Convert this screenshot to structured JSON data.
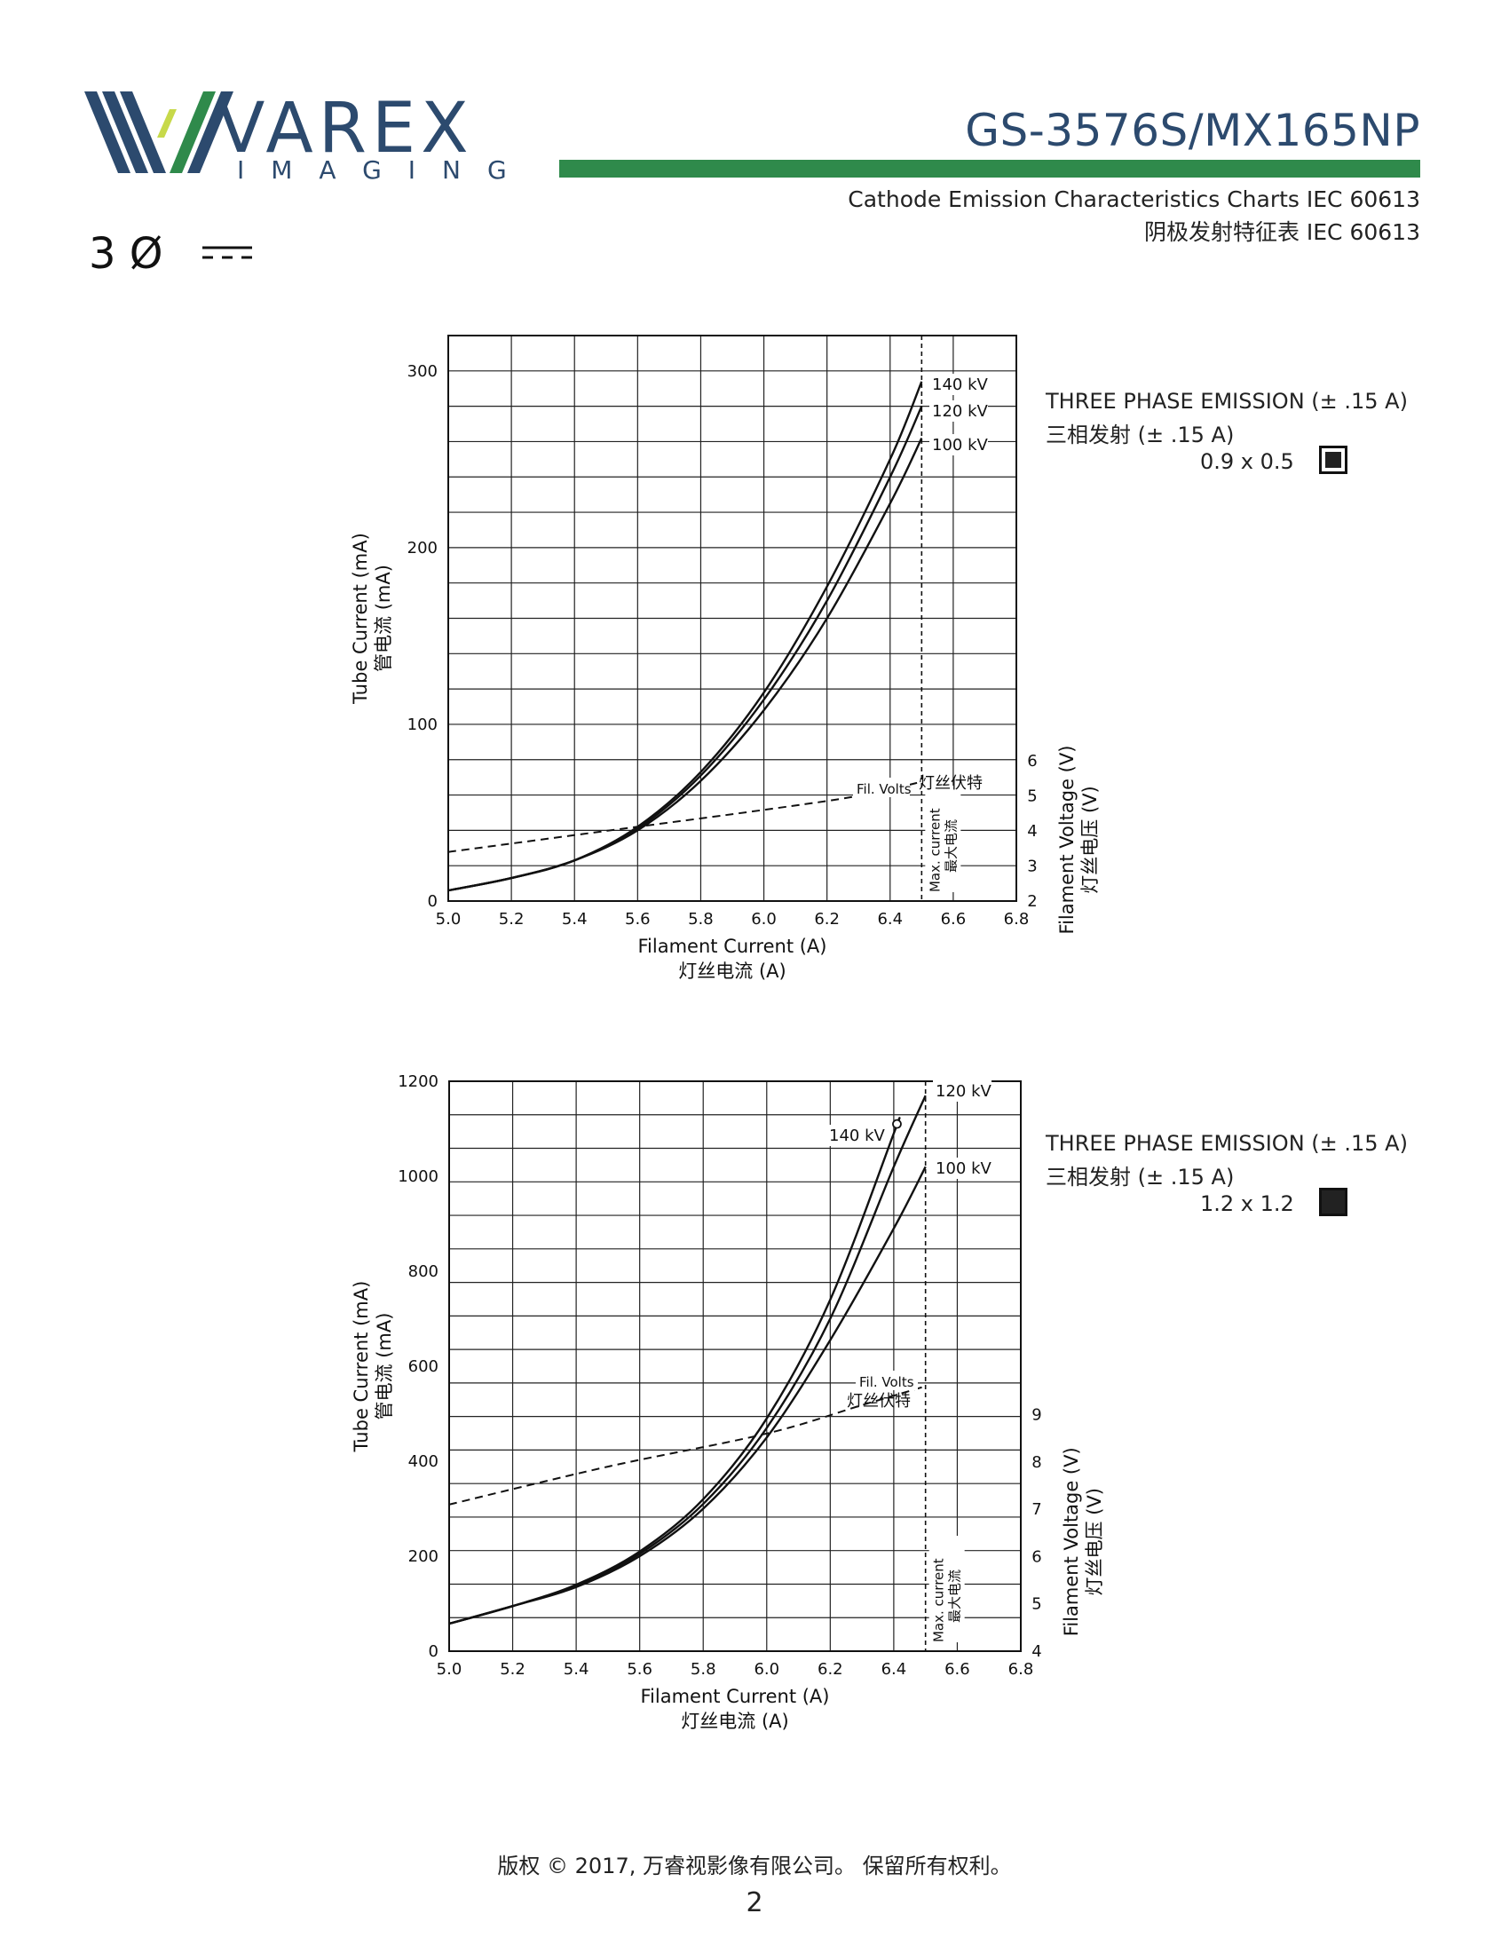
{
  "header": {
    "brand_name": "VAREX",
    "brand_sub": "IMAGING",
    "model": "GS-3576S/MX165NP",
    "subtitle_en": "Cathode Emission Characteristics Charts IEC 60613",
    "subtitle_zh": "阴极发射特征表 IEC 60613",
    "phase_symbol": "3 Ø",
    "colors": {
      "brand_blue": "#2c4a6e",
      "brand_green": "#2f8a4b",
      "brand_lime": "#c7d94a"
    }
  },
  "legend1": {
    "line1": "THREE PHASE EMISSION (± .15 A)",
    "line2": "三相发射 (± .15 A)",
    "focal_spot": "0.9 x 0.5"
  },
  "legend2": {
    "line1": "THREE PHASE EMISSION (± .15 A)",
    "line2": "三相发射 (± .15 A)",
    "focal_spot": "1.2 x 1.2"
  },
  "chart_data": [
    {
      "type": "line",
      "xlabel": "Filament Current (A)",
      "xlabel_zh": "灯丝电流 (A)",
      "ylabel": "Tube Current (mA)",
      "ylabel_zh": "管电流 (mA)",
      "y2label": "Filament Voltage (V)",
      "y2label_zh": "灯丝电压 (V)",
      "xlim": [
        5.0,
        6.8
      ],
      "ylim": [
        0,
        320
      ],
      "y2lim": [
        2,
        6
      ],
      "x_ticks": [
        "5.0",
        "5.2",
        "5.4",
        "5.6",
        "5.8",
        "6.0",
        "6.2",
        "6.4",
        "6.6",
        "6.8"
      ],
      "y_ticks": [
        0,
        100,
        200,
        300
      ],
      "y2_ticks": [
        2,
        3,
        4,
        5,
        6
      ],
      "grid": true,
      "max_current": 6.5,
      "max_current_label": "Max. current",
      "max_current_label_zh": "最大电流",
      "fil_volts_label": "Fil. Volts",
      "fil_volts_label_zh": "灯丝伏特",
      "series": [
        {
          "name": "140 kV",
          "x": [
            5.0,
            5.2,
            5.4,
            5.6,
            5.8,
            6.0,
            6.2,
            6.4,
            6.5
          ],
          "y": [
            6,
            13,
            23,
            42,
            73,
            118,
            178,
            250,
            294
          ]
        },
        {
          "name": "120 kV",
          "x": [
            5.0,
            5.2,
            5.4,
            5.6,
            5.8,
            6.0,
            6.2,
            6.4,
            6.5
          ],
          "y": [
            6,
            13,
            23,
            41,
            71,
            114,
            170,
            240,
            280
          ]
        },
        {
          "name": "100 kV",
          "x": [
            5.0,
            5.2,
            5.4,
            5.6,
            5.8,
            6.0,
            6.2,
            6.4,
            6.5
          ],
          "y": [
            6,
            13,
            23,
            40,
            68,
            108,
            160,
            225,
            262
          ]
        }
      ],
      "fil_volts": {
        "x": [
          5.0,
          5.5,
          6.0,
          6.3,
          6.5
        ],
        "y": [
          3.4,
          4.0,
          4.6,
          5.0,
          5.4
        ]
      }
    },
    {
      "type": "line",
      "xlabel": "Filament Current (A)",
      "xlabel_zh": "灯丝电流 (A)",
      "ylabel": "Tube Current (mA)",
      "ylabel_zh": "管电流 (mA)",
      "y2label": "Filament Voltage (V)",
      "y2label_zh": "灯丝电压 (V)",
      "xlim": [
        5.0,
        6.8
      ],
      "ylim": [
        0,
        1200
      ],
      "y2lim": [
        4,
        9
      ],
      "x_ticks": [
        "5.0",
        "5.2",
        "5.4",
        "5.6",
        "5.8",
        "6.0",
        "6.2",
        "6.4",
        "6.6",
        "6.8"
      ],
      "y_ticks": [
        0,
        200,
        400,
        600,
        800,
        1000,
        1200
      ],
      "y2_ticks": [
        4,
        5,
        6,
        7,
        8,
        9
      ],
      "grid": true,
      "max_current": 6.5,
      "max_current_label": "Max. current",
      "max_current_label_zh": "最大电流",
      "fil_volts_label": "Fil. Volts",
      "fil_volts_label_zh": "灯丝伏特",
      "series": [
        {
          "name": "140 kV",
          "x": [
            5.0,
            5.2,
            5.4,
            5.6,
            5.8,
            6.0,
            6.2,
            6.4,
            6.41
          ],
          "y": [
            58,
            95,
            140,
            210,
            320,
            490,
            740,
            1090,
            1110
          ]
        },
        {
          "name": "120 kV",
          "x": [
            5.0,
            5.2,
            5.4,
            5.6,
            5.8,
            6.0,
            6.2,
            6.4,
            6.5
          ],
          "y": [
            58,
            95,
            138,
            205,
            310,
            470,
            700,
            1020,
            1170
          ]
        },
        {
          "name": "100 kV",
          "x": [
            5.0,
            5.2,
            5.4,
            5.6,
            5.8,
            6.0,
            6.2,
            6.4,
            6.5
          ],
          "y": [
            58,
            95,
            135,
            200,
            300,
            450,
            655,
            890,
            1020
          ]
        }
      ],
      "fil_volts": {
        "x": [
          5.0,
          5.5,
          6.0,
          6.3,
          6.5
        ],
        "y": [
          7.1,
          7.9,
          8.6,
          9.2,
          9.6
        ]
      }
    }
  ],
  "footer": {
    "copyright": "版权 © 2017, 万睿视影像有限公司。 保留所有权利。",
    "page": "2"
  }
}
